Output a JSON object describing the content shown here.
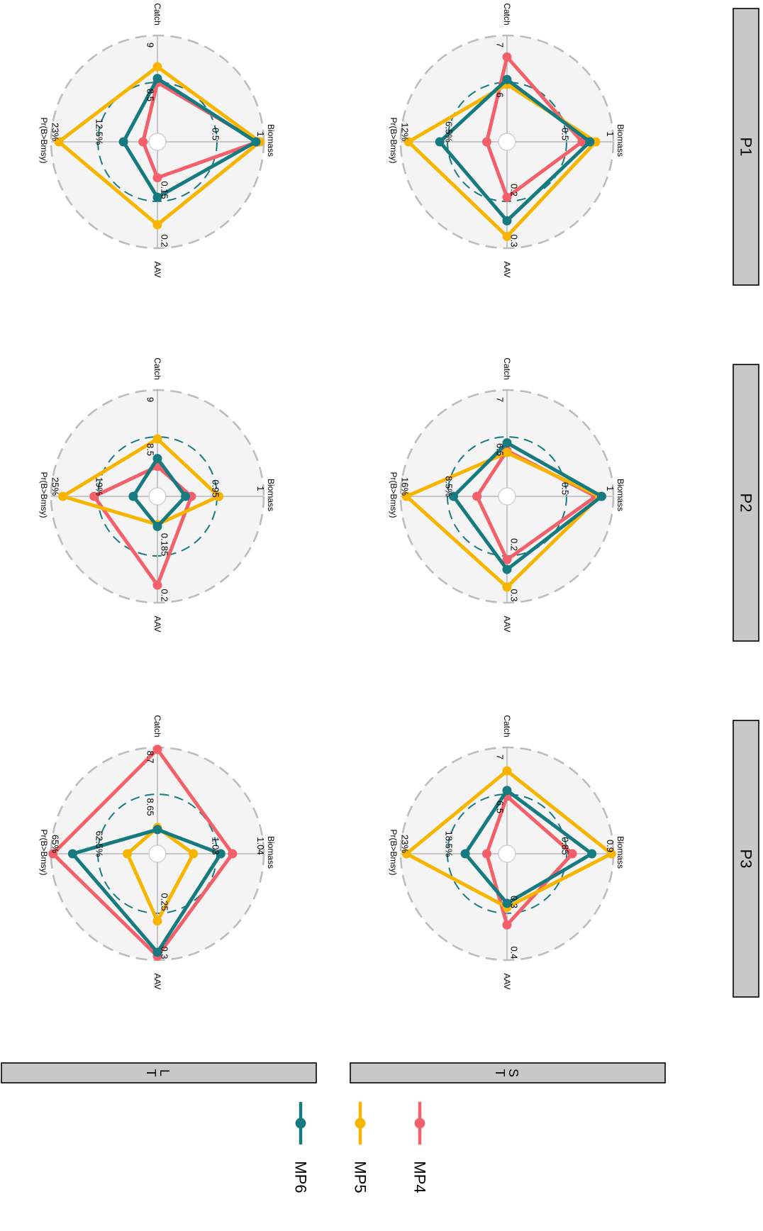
{
  "colors": {
    "MP4": "#f4606a",
    "MP5": "#f7b500",
    "MP6": "#167b80",
    "panel_bg": "#f4f4f4",
    "outer_ring": "#bdbdbd",
    "strip_fill": "#c8c8c8"
  },
  "chart_data": {
    "type": "radar",
    "axes": [
      "Biomass",
      "AAV",
      "Pr(B>Bmsy)",
      "Catch"
    ],
    "column_strips": [
      "P1",
      "P2",
      "P3"
    ],
    "row_strips": [
      [
        "S",
        "T"
      ],
      [
        "L",
        "T"
      ]
    ],
    "legend": [
      {
        "name": "MP4",
        "color": "#f4606a"
      },
      {
        "name": "MP5",
        "color": "#f7b500"
      },
      {
        "name": "MP6",
        "color": "#167b80"
      }
    ],
    "panels": [
      {
        "column": "P1",
        "row": "ST",
        "ticks": {
          "Biomass": {
            "outer": "1",
            "inner": "0.5"
          },
          "AAV": {
            "outer": "0.3",
            "inner": "0.2"
          },
          "Pr(B>Bmsy)": {
            "outer": "12%",
            "inner": "6.5%"
          },
          "Catch": {
            "outer": "7",
            "inner": "6"
          }
        },
        "series": [
          {
            "name": "MP4",
            "values": [
              0.68,
              0.48,
              0.12,
              0.78
            ]
          },
          {
            "name": "MP5",
            "values": [
              0.82,
              0.88,
              0.92,
              0.5
            ]
          },
          {
            "name": "MP6",
            "values": [
              0.76,
              0.72,
              0.6,
              0.55
            ]
          }
        ]
      },
      {
        "column": "P2",
        "row": "ST",
        "ticks": {
          "Biomass": {
            "outer": "1",
            "inner": "0.5"
          },
          "AAV": {
            "outer": "0.3",
            "inner": "0.2"
          },
          "Pr(B>Bmsy)": {
            "outer": "16%",
            "inner": "8.5%"
          },
          "Catch": {
            "outer": "7",
            "inner": "6.5"
          }
        },
        "series": [
          {
            "name": "MP4",
            "values": [
              0.82,
              0.56,
              0.22,
              0.38
            ]
          },
          {
            "name": "MP5",
            "values": [
              0.86,
              0.84,
              0.94,
              0.36
            ]
          },
          {
            "name": "MP6",
            "values": [
              0.88,
              0.66,
              0.46,
              0.46
            ]
          }
        ]
      },
      {
        "column": "P3",
        "row": "ST",
        "ticks": {
          "Biomass": {
            "outer": "0.9",
            "inner": "0.85"
          },
          "AAV": {
            "outer": "0.4",
            "inner": "0.3"
          },
          "Pr(B>Bmsy)": {
            "outer": "23%",
            "inner": "18.5%"
          },
          "Catch": {
            "outer": "7",
            "inner": "6.5"
          }
        },
        "series": [
          {
            "name": "MP4",
            "values": [
              0.58,
              0.64,
              0.12,
              0.5
            ]
          },
          {
            "name": "MP5",
            "values": [
              0.98,
              0.46,
              0.94,
              0.76
            ]
          },
          {
            "name": "MP6",
            "values": [
              0.78,
              0.42,
              0.34,
              0.56
            ]
          }
        ]
      },
      {
        "column": "P1",
        "row": "LT",
        "ticks": {
          "Biomass": {
            "outer": "1",
            "inner": "0.5"
          },
          "AAV": {
            "outer": "0.2",
            "inner": "0.15"
          },
          "Pr(B>Bmsy)": {
            "outer": "23%",
            "inner": "12.5%"
          },
          "Catch": {
            "outer": "9",
            "inner": "8.5"
          }
        },
        "series": [
          {
            "name": "MP4",
            "values": [
              0.94,
              0.28,
              0.06,
              0.52
            ]
          },
          {
            "name": "MP5",
            "values": [
              0.96,
              0.76,
              0.92,
              0.68
            ]
          },
          {
            "name": "MP6",
            "values": [
              0.92,
              0.48,
              0.26,
              0.56
            ]
          }
        ]
      },
      {
        "column": "P2",
        "row": "LT",
        "ticks": {
          "Biomass": {
            "outer": "1",
            "inner": "0.95"
          },
          "AAV": {
            "outer": "0.2",
            "inner": "0.185"
          },
          "Pr(B>Bmsy)": {
            "outer": "25%",
            "inner": "19%"
          },
          "Catch": {
            "outer": "9",
            "inner": "8.5"
          }
        },
        "series": [
          {
            "name": "MP4",
            "values": [
              0.26,
              0.82,
              0.56,
              0.22
            ]
          },
          {
            "name": "MP5",
            "values": [
              0.54,
              0.2,
              0.88,
              0.5
            ]
          },
          {
            "name": "MP6",
            "values": [
              0.2,
              0.22,
              0.16,
              0.3
            ]
          }
        ]
      },
      {
        "column": "P3",
        "row": "LT",
        "ticks": {
          "Biomass": {
            "outer": "1.04",
            "inner": "1.03"
          },
          "AAV": {
            "outer": "0.3",
            "inner": "0.25"
          },
          "Pr(B>Bmsy)": {
            "outer": "65%",
            "inner": "62.5%"
          },
          "Catch": {
            "outer": "8.7",
            "inner": "8.65"
          }
        },
        "series": [
          {
            "name": "MP4",
            "values": [
              0.68,
              0.96,
              0.98,
              0.98
            ]
          },
          {
            "name": "MP5",
            "values": [
              0.28,
              0.6,
              0.22,
              0.18
            ]
          },
          {
            "name": "MP6",
            "values": [
              0.56,
              0.92,
              0.78,
              0.16
            ]
          }
        ]
      }
    ]
  }
}
